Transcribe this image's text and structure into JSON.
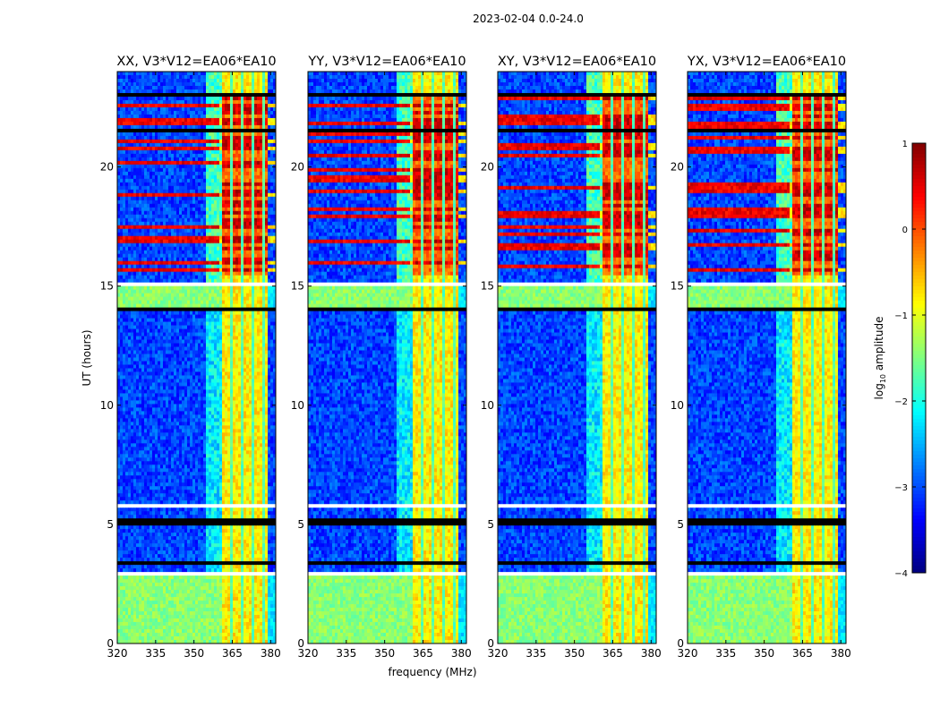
{
  "figure": {
    "suptitle": "2023-02-04 0.0-24.0",
    "xlabel": "frequency (MHz)",
    "ylabel": "UT (hours)"
  },
  "chart_data": {
    "type": "heatmap",
    "title": "2023-02-04 0.0-24.0",
    "xlabel": "frequency (MHz)",
    "ylabel": "UT (hours)",
    "xlim": [
      320,
      382
    ],
    "ylim": [
      0,
      24
    ],
    "xticks": [
      320,
      335,
      350,
      365,
      380
    ],
    "yticks": [
      0,
      5,
      10,
      15,
      20
    ],
    "panels": [
      {
        "title": "XX, V3*V12=EA06*EA10",
        "pol": "XX"
      },
      {
        "title": "YY, V3*V12=EA06*EA10",
        "pol": "YY"
      },
      {
        "title": "XY, V3*V12=EA06*EA10",
        "pol": "XY"
      },
      {
        "title": "YX, V3*V12=EA06*EA10",
        "pol": "YX"
      }
    ],
    "colorbar": {
      "label": "log10 amplitude",
      "range": [
        -4,
        1
      ],
      "ticks": [
        1,
        0,
        -1,
        -2,
        -3,
        -4
      ],
      "colormap": "jet"
    },
    "features": {
      "rfi_band_mhz": [
        360,
        380
      ],
      "rfi_subband_edges_mhz": [
        364,
        368,
        373,
        377
      ],
      "strong_rfi_hours": [
        [
          15.5,
          23
        ]
      ],
      "flagged_rows_hours": [
        0,
        1.3,
        1.5,
        2.3,
        2.7,
        2.9,
        3.3,
        5.0,
        5.8,
        14.0,
        15.0
      ]
    }
  },
  "colorbar": {
    "label_main": "log",
    "label_sub": "10",
    "label_rest": " amplitude",
    "tick_labels": [
      "1",
      "0",
      "−1",
      "−2",
      "−3",
      "−4"
    ]
  }
}
